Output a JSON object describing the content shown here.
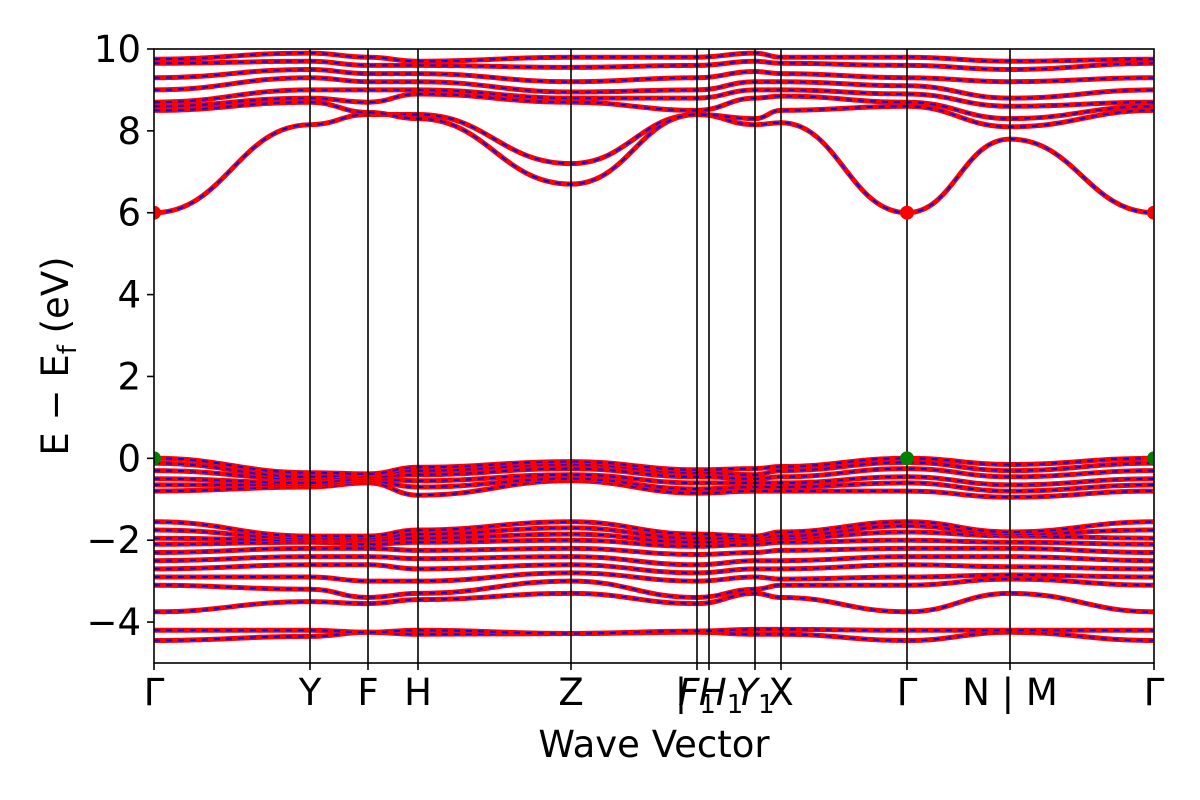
{
  "chart_data": {
    "type": "line",
    "xlabel": "Wave Vector",
    "ylabel": "E − E",
    "ylabel_sub": "f",
    "ylabel_unit": " (eV)",
    "ylim": [
      -5,
      10
    ],
    "yticks": [
      -4,
      -2,
      0,
      2,
      4,
      6,
      8,
      10
    ],
    "grid": false,
    "xlim": [
      0,
      1
    ],
    "kpoints": [
      {
        "label": "Γ",
        "x": 0.0
      },
      {
        "label": "Y",
        "x": 0.156
      },
      {
        "label": "F",
        "x": 0.214
      },
      {
        "label": "H",
        "x": 0.264
      },
      {
        "label": "Z",
        "x": 0.417
      },
      {
        "label": "F",
        "sub": "1",
        "x": 0.543
      },
      {
        "label": "| H",
        "sub": "1",
        "x": 0.555
      },
      {
        "label": "Y",
        "sub": "1",
        "x": 0.601
      },
      {
        "label": "X",
        "x": 0.627
      },
      {
        "label": "Γ",
        "x": 0.753
      },
      {
        "label": "N | M",
        "x": 0.856
      },
      {
        "label": "Γ",
        "x": 1.0
      }
    ],
    "band_nodes_x": [
      0.0,
      0.156,
      0.214,
      0.264,
      0.417,
      0.543,
      0.601,
      0.627,
      0.753,
      0.856,
      1.0
    ],
    "series_style": [
      {
        "color": "#ff0000",
        "style": "solid"
      },
      {
        "color": "#0000ff",
        "style": "dashed"
      }
    ],
    "bands": [
      [
        -4.45,
        -4.35,
        -4.25,
        -4.3,
        -4.28,
        -4.25,
        -4.3,
        -4.3,
        -4.45,
        -4.25,
        -4.45
      ],
      [
        -4.2,
        -4.2,
        -4.25,
        -4.2,
        -4.28,
        -4.22,
        -4.18,
        -4.18,
        -4.2,
        -4.2,
        -4.2
      ],
      [
        -3.75,
        -3.5,
        -3.55,
        -3.45,
        -3.3,
        -3.55,
        -3.3,
        -3.4,
        -3.75,
        -3.3,
        -3.75
      ],
      [
        -3.1,
        -3.2,
        -3.4,
        -3.3,
        -3.0,
        -3.4,
        -3.2,
        -3.1,
        -3.1,
        -2.95,
        -3.1
      ],
      [
        -2.9,
        -2.9,
        -3.0,
        -3.0,
        -2.8,
        -3.0,
        -2.9,
        -2.95,
        -2.9,
        -2.85,
        -2.9
      ],
      [
        -2.7,
        -2.6,
        -2.6,
        -2.7,
        -2.6,
        -2.8,
        -2.7,
        -2.7,
        -2.6,
        -2.65,
        -2.7
      ],
      [
        -2.5,
        -2.4,
        -2.4,
        -2.45,
        -2.4,
        -2.6,
        -2.5,
        -2.5,
        -2.4,
        -2.4,
        -2.5
      ],
      [
        -2.3,
        -2.2,
        -2.2,
        -2.25,
        -2.2,
        -2.35,
        -2.3,
        -2.25,
        -2.2,
        -2.2,
        -2.3
      ],
      [
        -2.1,
        -2.05,
        -2.1,
        -2.05,
        -2.0,
        -2.15,
        -2.1,
        -2.05,
        -2.0,
        -2.05,
        -2.1
      ],
      [
        -1.95,
        -2.0,
        -2.0,
        -1.95,
        -1.85,
        -2.05,
        -2.0,
        -1.95,
        -1.8,
        -1.9,
        -1.95
      ],
      [
        -1.75,
        -1.95,
        -1.95,
        -1.85,
        -1.7,
        -1.95,
        -1.95,
        -1.9,
        -1.65,
        -1.85,
        -1.75
      ],
      [
        -1.55,
        -1.9,
        -1.9,
        -1.75,
        -1.55,
        -1.85,
        -1.9,
        -1.8,
        -1.55,
        -1.8,
        -1.55
      ],
      [
        -0.8,
        -0.7,
        -0.6,
        -0.9,
        -0.55,
        -0.85,
        -0.8,
        -0.8,
        -0.8,
        -0.95,
        -0.8
      ],
      [
        -0.65,
        -0.65,
        -0.55,
        -0.7,
        -0.5,
        -0.75,
        -0.7,
        -0.7,
        -0.6,
        -0.8,
        -0.65
      ],
      [
        -0.5,
        -0.6,
        -0.5,
        -0.55,
        -0.4,
        -0.6,
        -0.6,
        -0.6,
        -0.45,
        -0.65,
        -0.5
      ],
      [
        -0.3,
        -0.5,
        -0.45,
        -0.4,
        -0.25,
        -0.45,
        -0.5,
        -0.45,
        -0.25,
        -0.45,
        -0.3
      ],
      [
        -0.12,
        -0.45,
        -0.4,
        -0.3,
        -0.15,
        -0.35,
        -0.4,
        -0.3,
        -0.1,
        -0.3,
        -0.12
      ],
      [
        0.0,
        -0.35,
        -0.38,
        -0.22,
        -0.08,
        -0.28,
        -0.25,
        -0.2,
        0.0,
        -0.15,
        0.0
      ],
      [
        6.0,
        8.15,
        8.4,
        8.4,
        7.2,
        8.4,
        8.15,
        8.2,
        6.0,
        7.8,
        6.0
      ],
      [
        8.5,
        8.7,
        8.45,
        8.3,
        6.7,
        8.4,
        8.3,
        8.5,
        8.6,
        8.1,
        8.5
      ],
      [
        8.6,
        8.8,
        8.7,
        8.9,
        8.7,
        8.5,
        8.8,
        8.85,
        8.7,
        8.3,
        8.6
      ],
      [
        8.7,
        9.0,
        9.0,
        9.0,
        8.8,
        8.8,
        9.0,
        9.0,
        8.9,
        8.6,
        8.7
      ],
      [
        9.0,
        9.3,
        9.2,
        9.2,
        8.95,
        9.0,
        9.2,
        9.2,
        9.1,
        8.8,
        9.0
      ],
      [
        9.3,
        9.5,
        9.4,
        9.4,
        9.2,
        9.3,
        9.45,
        9.4,
        9.3,
        9.2,
        9.3
      ],
      [
        9.65,
        9.7,
        9.6,
        9.6,
        9.55,
        9.6,
        9.7,
        9.65,
        9.6,
        9.5,
        9.65
      ],
      [
        9.75,
        9.9,
        9.8,
        9.7,
        9.8,
        9.8,
        9.9,
        9.8,
        9.8,
        9.7,
        9.75
      ]
    ],
    "markers": [
      {
        "x": 0.0,
        "y": 6.0,
        "color": "#ff0000"
      },
      {
        "x": 0.753,
        "y": 6.0,
        "color": "#ff0000"
      },
      {
        "x": 1.0,
        "y": 6.0,
        "color": "#ff0000"
      },
      {
        "x": 0.0,
        "y": 0.0,
        "color": "#008000"
      },
      {
        "x": 0.753,
        "y": 0.0,
        "color": "#008000"
      },
      {
        "x": 1.0,
        "y": 0.0,
        "color": "#008000"
      }
    ]
  }
}
